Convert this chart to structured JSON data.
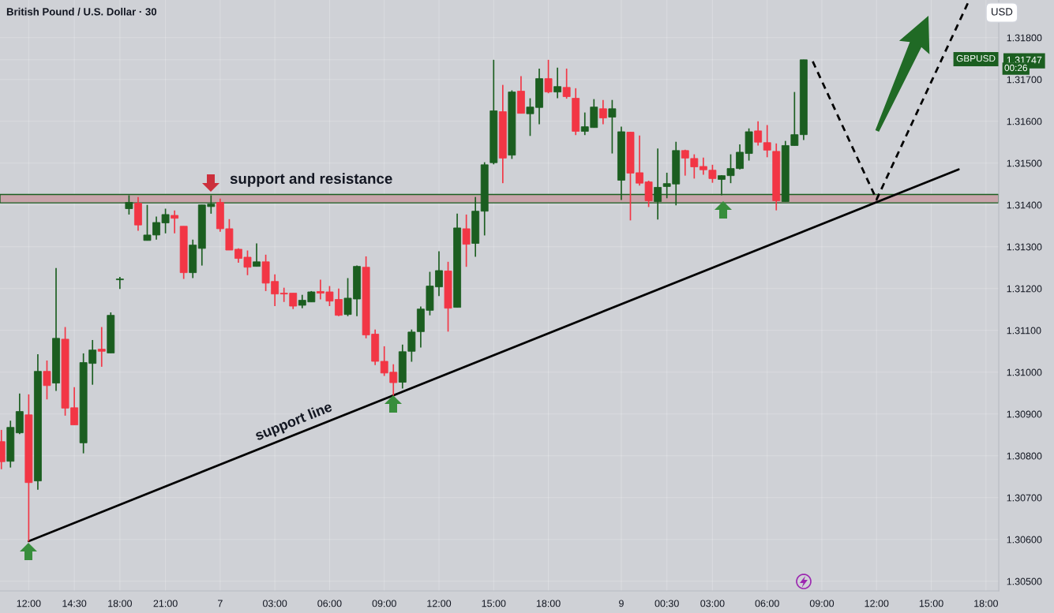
{
  "chart_data": {
    "type": "candlestick",
    "title": "British Pound / U.S. Dollar · 30",
    "categories": [
      null,
      null,
      null,
      "12:00",
      null,
      null,
      null,
      null,
      "14:30",
      null,
      null,
      null,
      null,
      "18:00",
      null,
      null,
      null,
      null,
      "21:00",
      null,
      null,
      null,
      null,
      null,
      "7",
      null,
      null,
      null,
      null,
      null,
      "03:00",
      null,
      null,
      null,
      null,
      null,
      "06:00",
      null,
      null,
      null,
      null,
      null,
      "09:00",
      null,
      null,
      null,
      null,
      null,
      "12:00",
      null,
      null,
      null,
      null,
      null,
      "15:00",
      null,
      null,
      null,
      null,
      null,
      "18:00",
      null,
      null,
      null,
      null,
      null,
      null,
      null,
      "9",
      null,
      null,
      null,
      null,
      "00:30",
      null,
      null,
      null,
      null,
      "03:00",
      null,
      null,
      null,
      null,
      null,
      "06:00",
      null,
      null,
      null,
      null,
      null,
      "09:00",
      null,
      null,
      null,
      null,
      null,
      "12:00",
      null,
      null,
      null,
      null,
      null,
      "15:00",
      null,
      null,
      null,
      null,
      null,
      "18:00",
      null
    ],
    "ylim": [
      1.30477,
      1.3189
    ],
    "yticks": [
      {
        "value": 1.305,
        "label": "1.30500"
      },
      {
        "value": 1.306,
        "label": "1.30600"
      },
      {
        "value": 1.307,
        "label": "1.30700"
      },
      {
        "value": 1.308,
        "label": "1.30800"
      },
      {
        "value": 1.309,
        "label": "1.30900"
      },
      {
        "value": 1.31,
        "label": "1.31000"
      },
      {
        "value": 1.311,
        "label": "1.31100"
      },
      {
        "value": 1.312,
        "label": "1.31200"
      },
      {
        "value": 1.313,
        "label": "1.31300"
      },
      {
        "value": 1.314,
        "label": "1.31400"
      },
      {
        "value": 1.315,
        "label": "1.31500"
      },
      {
        "value": 1.316,
        "label": "1.31600"
      },
      {
        "value": 1.317,
        "label": "1.31700"
      },
      {
        "value": 1.31747,
        "label": "1.31747"
      },
      {
        "value": 1.318,
        "label": "1.31800"
      }
    ],
    "grid": true,
    "series": [
      {
        "type": "line",
        "name": "support line",
        "color": "#000000",
        "line_style": "solid",
        "values": [
          null,
          null,
          null,
          1.30596,
          null,
          null,
          null,
          null,
          null,
          null,
          null,
          null,
          null,
          null,
          null,
          null,
          null,
          null,
          null,
          null,
          null,
          null,
          null,
          null,
          null,
          null,
          null,
          null,
          null,
          null,
          null,
          null,
          null,
          null,
          null,
          null,
          null,
          null,
          null,
          null,
          null,
          null,
          null,
          null,
          null,
          null,
          null,
          null,
          null,
          null,
          null,
          null,
          null,
          null,
          null,
          null,
          null,
          null,
          null,
          null,
          null,
          null,
          null,
          null,
          null,
          null,
          null,
          null,
          null,
          null,
          null,
          null,
          null,
          null,
          null,
          null,
          null,
          null,
          null,
          null,
          null,
          null,
          null,
          null,
          null,
          null,
          null,
          null,
          null,
          null,
          null,
          null,
          null,
          null,
          null,
          null,
          null,
          null,
          null,
          null,
          null,
          null,
          null,
          null,
          null,
          1.31485,
          null,
          null,
          null,
          null
        ]
      },
      {
        "type": "line",
        "color": "#000000",
        "line_style": "dashed",
        "values": [
          null,
          null,
          null,
          null,
          null,
          null,
          null,
          null,
          null,
          null,
          null,
          null,
          null,
          null,
          null,
          null,
          null,
          null,
          null,
          null,
          null,
          null,
          null,
          null,
          null,
          null,
          null,
          null,
          null,
          null,
          null,
          null,
          null,
          null,
          null,
          null,
          null,
          null,
          null,
          null,
          null,
          null,
          null,
          null,
          null,
          null,
          null,
          null,
          null,
          null,
          null,
          null,
          null,
          null,
          null,
          null,
          null,
          null,
          null,
          null,
          null,
          null,
          null,
          null,
          null,
          null,
          null,
          null,
          null,
          null,
          null,
          null,
          null,
          null,
          null,
          null,
          null,
          null,
          null,
          null,
          null,
          null,
          null,
          null,
          null,
          null,
          null,
          null,
          null,
          1.31743,
          null,
          null,
          null,
          null,
          null,
          null,
          1.31413,
          null,
          null,
          null,
          null,
          null,
          null,
          null,
          null,
          null,
          1.31882,
          null,
          null,
          null
        ]
      },
      {
        "ohlc": [
          [
            1.30834,
            1.30862,
            1.30768,
            1.30786
          ],
          [
            1.30787,
            1.30884,
            1.30772,
            1.30868
          ],
          [
            1.30855,
            1.30949,
            1.30852,
            1.30906
          ],
          [
            1.30898,
            1.30947,
            1.30595,
            1.30736
          ],
          [
            1.3074,
            1.31043,
            1.30719,
            1.31002
          ],
          [
            1.31002,
            1.31028,
            1.30935,
            1.30968
          ],
          [
            1.30974,
            1.31249,
            1.30955,
            1.31081
          ],
          [
            1.31079,
            1.31108,
            1.30896,
            1.30914
          ],
          [
            1.30915,
            1.30964,
            1.30874,
            1.30874
          ],
          [
            1.30831,
            1.31045,
            1.30806,
            1.31023
          ],
          [
            1.31021,
            1.31077,
            1.3097,
            1.31053
          ],
          [
            1.31055,
            1.31108,
            1.31013,
            1.3105
          ],
          [
            1.31046,
            1.31143,
            1.31046,
            1.31136
          ],
          [
            1.31221,
            1.31228,
            1.31199,
            1.31223
          ],
          [
            1.31391,
            1.31423,
            1.31377,
            1.31406
          ],
          [
            1.31404,
            1.31419,
            1.31338,
            1.31352
          ],
          [
            1.31315,
            1.314,
            1.31315,
            1.31328
          ],
          [
            1.31328,
            1.31372,
            1.31317,
            1.31358
          ],
          [
            1.31357,
            1.31391,
            1.31332,
            1.31377
          ],
          [
            1.31375,
            1.31387,
            1.31332,
            1.31368
          ],
          [
            1.31349,
            1.31349,
            1.31223,
            1.31238
          ],
          [
            1.31238,
            1.31317,
            1.31225,
            1.31304
          ],
          [
            1.31296,
            1.314,
            1.31255,
            1.314
          ],
          [
            1.31396,
            1.31423,
            1.31379,
            1.31402
          ],
          [
            1.31406,
            1.31415,
            1.31336,
            1.31343
          ],
          [
            1.31343,
            1.31366,
            1.31292,
            1.31292
          ],
          [
            1.31294,
            1.31296,
            1.31262,
            1.31272
          ],
          [
            1.31275,
            1.31291,
            1.31232,
            1.31251
          ],
          [
            1.31253,
            1.31308,
            1.31253,
            1.31264
          ],
          [
            1.31264,
            1.31281,
            1.31194,
            1.31213
          ],
          [
            1.31217,
            1.31234,
            1.31158,
            1.31187
          ],
          [
            1.31189,
            1.31202,
            1.31168,
            1.31187
          ],
          [
            1.31189,
            1.31189,
            1.31151,
            1.31158
          ],
          [
            1.3116,
            1.31185,
            1.31153,
            1.31172
          ],
          [
            1.31168,
            1.31194,
            1.31168,
            1.31192
          ],
          [
            1.31193,
            1.31221,
            1.31174,
            1.31189
          ],
          [
            1.31192,
            1.31206,
            1.31158,
            1.3117
          ],
          [
            1.31174,
            1.312,
            1.31134,
            1.31136
          ],
          [
            1.31138,
            1.31225,
            1.31134,
            1.31177
          ],
          [
            1.31175,
            1.31255,
            1.31134,
            1.31253
          ],
          [
            1.31251,
            1.31277,
            1.31081,
            1.31089
          ],
          [
            1.31091,
            1.31102,
            1.31017,
            1.31026
          ],
          [
            1.31026,
            1.31062,
            1.30991,
            1.30998
          ],
          [
            1.31,
            1.31019,
            1.30944,
            1.30975
          ],
          [
            1.30976,
            1.31066,
            1.30961,
            1.31049
          ],
          [
            1.3105,
            1.31102,
            1.31025,
            1.31096
          ],
          [
            1.31097,
            1.31157,
            1.31059,
            1.31151
          ],
          [
            1.31148,
            1.3124,
            1.31136,
            1.31206
          ],
          [
            1.31204,
            1.31289,
            1.31182,
            1.31243
          ],
          [
            1.31242,
            1.31264,
            1.31097,
            1.31153
          ],
          [
            1.31155,
            1.31379,
            1.31155,
            1.31345
          ],
          [
            1.31343,
            1.31377,
            1.31252,
            1.31306
          ],
          [
            1.31308,
            1.31419,
            1.31276,
            1.31385
          ],
          [
            1.31385,
            1.31502,
            1.31327,
            1.31496
          ],
          [
            1.31501,
            1.31747,
            1.31497,
            1.31625
          ],
          [
            1.31623,
            1.31687,
            1.31452,
            1.31512
          ],
          [
            1.31519,
            1.31674,
            1.3151,
            1.3167
          ],
          [
            1.31672,
            1.31708,
            1.31619,
            1.31619
          ],
          [
            1.31618,
            1.31655,
            1.31565,
            1.31634
          ],
          [
            1.31633,
            1.31726,
            1.31593,
            1.31702
          ],
          [
            1.31702,
            1.31747,
            1.31667,
            1.3167
          ],
          [
            1.3167,
            1.31728,
            1.31655,
            1.31683
          ],
          [
            1.31681,
            1.31726,
            1.31654,
            1.31659
          ],
          [
            1.31655,
            1.31679,
            1.31567,
            1.31576
          ],
          [
            1.31576,
            1.31621,
            1.31567,
            1.31587
          ],
          [
            1.31585,
            1.31653,
            1.31585,
            1.31634
          ],
          [
            1.3163,
            1.31651,
            1.31593,
            1.31608
          ],
          [
            1.3161,
            1.31651,
            1.31523,
            1.3163
          ],
          [
            1.31459,
            1.31587,
            1.31412,
            1.31575
          ],
          [
            1.31574,
            1.31575,
            1.31363,
            1.31476
          ],
          [
            1.31477,
            1.31566,
            1.31446,
            1.31452
          ],
          [
            1.31455,
            1.31458,
            1.31395,
            1.3141
          ],
          [
            1.31408,
            1.31535,
            1.31365,
            1.31442
          ],
          [
            1.31444,
            1.31477,
            1.31416,
            1.31451
          ],
          [
            1.3145,
            1.31551,
            1.31399,
            1.3153
          ],
          [
            1.3153,
            1.31532,
            1.3147,
            1.31512
          ],
          [
            1.31511,
            1.31521,
            1.31463,
            1.31491
          ],
          [
            1.31492,
            1.31513,
            1.31472,
            1.31484
          ],
          [
            1.31483,
            1.31496,
            1.31453,
            1.31463
          ],
          [
            1.31461,
            1.31471,
            1.31423,
            1.3147
          ],
          [
            1.3147,
            1.31521,
            1.31452,
            1.31487
          ],
          [
            1.31487,
            1.31545,
            1.31485,
            1.31526
          ],
          [
            1.31523,
            1.31583,
            1.31506,
            1.31575
          ],
          [
            1.31577,
            1.316,
            1.31542,
            1.3155
          ],
          [
            1.31549,
            1.31591,
            1.31514,
            1.31531
          ],
          [
            1.31528,
            1.31547,
            1.31387,
            1.3141
          ],
          [
            1.31408,
            1.31553,
            1.31408,
            1.31542
          ],
          [
            1.31542,
            1.3167,
            1.31542,
            1.31568
          ],
          [
            1.31568,
            1.31747,
            1.31555,
            1.31747
          ],
          null,
          null,
          null,
          null,
          null,
          null,
          null,
          null,
          null,
          null,
          null,
          null,
          null,
          null,
          null,
          null,
          null,
          null,
          null,
          null,
          null
        ],
        "colors": [
          "#f23645",
          "#1b5e20",
          "#1b5e20",
          "#f23645",
          "#1b5e20",
          "#f23645",
          "#1b5e20",
          "#f23645",
          "#f23645",
          "#1b5e20",
          "#1b5e20",
          "#f23645",
          "#1b5e20",
          "#1b5e20",
          "#1b5e20",
          "#f23645",
          "#1b5e20",
          "#1b5e20",
          "#1b5e20",
          "#f23645",
          "#f23645",
          "#1b5e20",
          "#1b5e20",
          "#1b5e20",
          "#f23645",
          "#f23645",
          "#f23645",
          "#f23645",
          "#1b5e20",
          "#f23645",
          "#f23645",
          "#f23645",
          "#f23645",
          "#1b5e20",
          "#1b5e20",
          "#f23645",
          "#f23645",
          "#f23645",
          "#1b5e20",
          "#1b5e20",
          "#f23645",
          "#f23645",
          "#f23645",
          "#f23645",
          "#1b5e20",
          "#1b5e20",
          "#1b5e20",
          "#1b5e20",
          "#1b5e20",
          "#f23645",
          "#1b5e20",
          "#f23645",
          "#1b5e20",
          "#1b5e20",
          "#1b5e20",
          "#f23645",
          "#1b5e20",
          "#f23645",
          "#1b5e20",
          "#1b5e20",
          "#f23645",
          "#1b5e20",
          "#f23645",
          "#f23645",
          "#1b5e20",
          "#1b5e20",
          "#f23645",
          "#1b5e20",
          "#1b5e20",
          "#f23645",
          "#f23645",
          "#f23645",
          "#1b5e20",
          "#1b5e20",
          "#1b5e20",
          "#f23645",
          "#f23645",
          "#f23645",
          "#f23645",
          "#1b5e20",
          "#1b5e20",
          "#1b5e20",
          "#1b5e20",
          "#f23645",
          "#f23645",
          "#f23645",
          "#1b5e20",
          "#1b5e20",
          "#1b5e20",
          null,
          null,
          null,
          null,
          null,
          null,
          null,
          null,
          null,
          null,
          null,
          null,
          null,
          null,
          null,
          null,
          null,
          null,
          null,
          null,
          null
        ]
      }
    ],
    "bands": [
      {
        "axis": "y",
        "from": 1.31405,
        "to": 1.31425,
        "label": "support and resistance",
        "color": "#c8a4aa"
      }
    ],
    "annotations": [
      "USD",
      "00:26",
      "GBPUSD"
    ]
  }
}
